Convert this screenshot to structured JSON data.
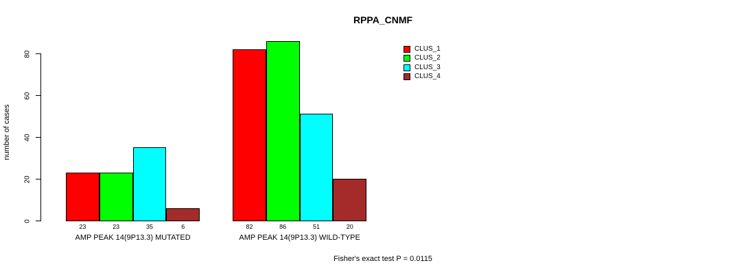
{
  "chart_data": {
    "type": "bar",
    "title": "RPPA_CNMF",
    "ylabel": "number of cases",
    "xlabel": "",
    "yticks": [
      0,
      20,
      40,
      60,
      80
    ],
    "ylim": [
      0,
      86
    ],
    "grid": false,
    "legend_position": "right",
    "categories": [
      "AMP PEAK 14(9P13.3) MUTATED",
      "AMP PEAK 14(9P13.3) WILD-TYPE"
    ],
    "series": [
      {
        "name": "CLUS_1",
        "color": "#FF0000",
        "values": [
          23,
          82
        ]
      },
      {
        "name": "CLUS_2",
        "color": "#00FF00",
        "values": [
          23,
          86
        ]
      },
      {
        "name": "CLUS_3",
        "color": "#00FFFF",
        "values": [
          35,
          51
        ]
      },
      {
        "name": "CLUS_4",
        "color": "#A52A2A",
        "values": [
          6,
          20
        ]
      }
    ],
    "bar_value_labels": [
      [
        23,
        23,
        35,
        6
      ],
      [
        82,
        86,
        51,
        20
      ]
    ],
    "annotation": "Fisher's exact test P = 0.0115"
  }
}
